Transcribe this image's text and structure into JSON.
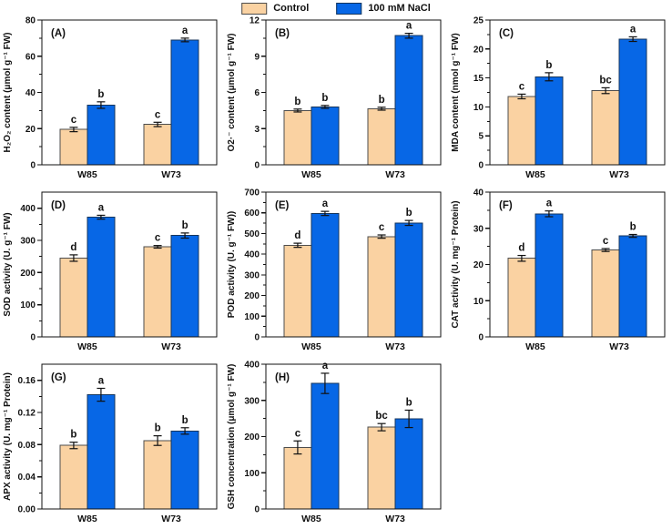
{
  "figure": {
    "legend": {
      "items": [
        {
          "label": "Control",
          "color": "#FAD2A2",
          "border": "#4d4d4d"
        },
        {
          "label": "100 mM NaCl",
          "color": "#0767E6",
          "border": "#16365c"
        }
      ]
    },
    "categories": [
      "W85",
      "W73"
    ]
  },
  "chart_data": [
    {
      "type": "bar",
      "panel_label": "(A)",
      "ylabel": "H₂O₂ content (μmol g⁻¹ FW)",
      "ylim": [
        0,
        80
      ],
      "yticks": [
        0,
        20,
        40,
        60,
        80
      ],
      "ytick_labels": [
        "0",
        "20",
        "40",
        "60",
        "80"
      ],
      "categories": [
        "W85",
        "W73"
      ],
      "series": [
        {
          "name": "Control",
          "values": [
            19.5,
            22.3
          ],
          "errors": [
            1.2,
            1.2
          ],
          "letters": [
            "c",
            "c"
          ]
        },
        {
          "name": "100 mM NaCl",
          "values": [
            33.0,
            69.0
          ],
          "errors": [
            1.8,
            1.0
          ],
          "letters": [
            "b",
            "a"
          ]
        }
      ]
    },
    {
      "type": "bar",
      "panel_label": "(B)",
      "ylabel": "O2·⁻ content (μmol g⁻¹ FW)",
      "ylim": [
        0,
        12
      ],
      "yticks": [
        0,
        3,
        6,
        9,
        12
      ],
      "ytick_labels": [
        "0",
        "3",
        "6",
        "9",
        "12"
      ],
      "categories": [
        "W85",
        "W73"
      ],
      "series": [
        {
          "name": "Control",
          "values": [
            4.5,
            4.65
          ],
          "errors": [
            0.12,
            0.12
          ],
          "letters": [
            "b",
            "b"
          ]
        },
        {
          "name": "100 mM NaCl",
          "values": [
            4.8,
            10.7
          ],
          "errors": [
            0.12,
            0.2
          ],
          "letters": [
            "b",
            "a"
          ]
        }
      ]
    },
    {
      "type": "bar",
      "panel_label": "(C)",
      "ylabel": "MDA content (nmol g⁻¹ FW)",
      "ylim": [
        0,
        25
      ],
      "yticks": [
        0,
        5,
        10,
        15,
        20,
        25
      ],
      "ytick_labels": [
        "0",
        "5",
        "10",
        "15",
        "20",
        "25"
      ],
      "categories": [
        "W85",
        "W73"
      ],
      "series": [
        {
          "name": "Control",
          "values": [
            11.8,
            12.8
          ],
          "errors": [
            0.4,
            0.5
          ],
          "letters": [
            "c",
            "bc"
          ]
        },
        {
          "name": "100 mM NaCl",
          "values": [
            15.2,
            21.7
          ],
          "errors": [
            0.7,
            0.4
          ],
          "letters": [
            "b",
            "a"
          ]
        }
      ]
    },
    {
      "type": "bar",
      "panel_label": "(D)",
      "ylabel": "SOD activity (U. g⁻¹ FW)",
      "ylim": [
        0,
        450
      ],
      "yticks": [
        0,
        100,
        200,
        300,
        400
      ],
      "ytick_labels": [
        "0",
        "100",
        "200",
        "300",
        "400"
      ],
      "categories": [
        "W85",
        "W73"
      ],
      "series": [
        {
          "name": "Control",
          "values": [
            245,
            280
          ],
          "errors": [
            10,
            4
          ],
          "letters": [
            "d",
            "c"
          ]
        },
        {
          "name": "100 mM NaCl",
          "values": [
            372,
            315
          ],
          "errors": [
            6,
            8
          ],
          "letters": [
            "a",
            "b"
          ]
        }
      ]
    },
    {
      "type": "bar",
      "panel_label": "(E)",
      "ylabel": "POD activity (U. g⁻¹ FW))",
      "ylim": [
        0,
        700
      ],
      "yticks": [
        0,
        100,
        200,
        300,
        400,
        500,
        600,
        700
      ],
      "ytick_labels": [
        "0",
        "100",
        "200",
        "300",
        "400",
        "500",
        "600",
        "700"
      ],
      "categories": [
        "W85",
        "W73"
      ],
      "series": [
        {
          "name": "Control",
          "values": [
            443,
            485
          ],
          "errors": [
            10,
            8
          ],
          "letters": [
            "d",
            "c"
          ]
        },
        {
          "name": "100 mM NaCl",
          "values": [
            597,
            551
          ],
          "errors": [
            10,
            12
          ],
          "letters": [
            "a",
            "b"
          ]
        }
      ]
    },
    {
      "type": "bar",
      "panel_label": "(F)",
      "ylabel": "CAT activity (U. mg⁻¹ Protein)",
      "ylim": [
        0,
        40
      ],
      "yticks": [
        0,
        10,
        20,
        30,
        40
      ],
      "ytick_labels": [
        "0",
        "10",
        "20",
        "30",
        "40"
      ],
      "categories": [
        "W85",
        "W73"
      ],
      "series": [
        {
          "name": "Control",
          "values": [
            21.7,
            24.0
          ],
          "errors": [
            0.8,
            0.4
          ],
          "letters": [
            "d",
            "c"
          ]
        },
        {
          "name": "100 mM NaCl",
          "values": [
            34.0,
            27.9
          ],
          "errors": [
            0.8,
            0.4
          ],
          "letters": [
            "a",
            "b"
          ]
        }
      ]
    },
    {
      "type": "bar",
      "panel_label": "(G)",
      "ylabel": "APX activity (U. mg⁻¹ Protein)",
      "ylim": [
        0,
        0.18
      ],
      "yticks": [
        0,
        0.04,
        0.08,
        0.12,
        0.16
      ],
      "ytick_labels": [
        "0.00",
        "0.04",
        "0.08",
        "0.12",
        "0.16"
      ],
      "categories": [
        "W85",
        "W73"
      ],
      "series": [
        {
          "name": "Control",
          "values": [
            0.079,
            0.085
          ],
          "errors": [
            0.004,
            0.006
          ],
          "letters": [
            "b",
            "b"
          ]
        },
        {
          "name": "100 mM NaCl",
          "values": [
            0.142,
            0.097
          ],
          "errors": [
            0.008,
            0.004
          ],
          "letters": [
            "a",
            "b"
          ]
        }
      ]
    },
    {
      "type": "bar",
      "panel_label": "(H)",
      "ylabel": "GSH concentration (μmol g⁻¹ FW)",
      "ylim": [
        0,
        400
      ],
      "yticks": [
        0,
        100,
        200,
        300,
        400
      ],
      "ytick_labels": [
        "0",
        "100",
        "200",
        "300",
        "400"
      ],
      "categories": [
        "W85",
        "W73"
      ],
      "series": [
        {
          "name": "Control",
          "values": [
            170,
            226
          ],
          "errors": [
            18,
            10
          ],
          "letters": [
            "c",
            "bc"
          ]
        },
        {
          "name": "100 mM NaCl",
          "values": [
            347,
            249
          ],
          "errors": [
            28,
            24
          ],
          "letters": [
            "a",
            "b"
          ]
        }
      ]
    }
  ]
}
